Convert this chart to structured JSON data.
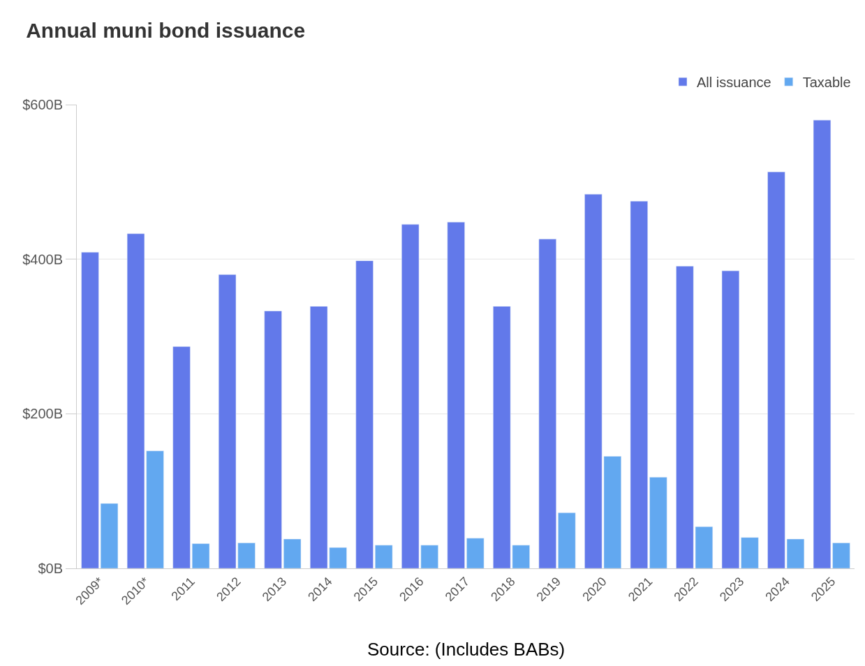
{
  "chart_data": {
    "type": "bar",
    "title": "Annual muni bond issuance",
    "categories": [
      "2009*",
      "2010*",
      "2011",
      "2012",
      "2013",
      "2014",
      "2015",
      "2016",
      "2017",
      "2018",
      "2019",
      "2020",
      "2021",
      "2022",
      "2023",
      "2024",
      "2025"
    ],
    "series": [
      {
        "name": "All issuance",
        "color": "#6279ea",
        "values": [
          409,
          433,
          287,
          380,
          333,
          339,
          398,
          445,
          448,
          339,
          426,
          484,
          475,
          391,
          385,
          513,
          580
        ]
      },
      {
        "name": "Taxable",
        "color": "#62a8f0",
        "values": [
          84,
          152,
          32,
          33,
          38,
          27,
          30,
          30,
          39,
          30,
          72,
          145,
          118,
          54,
          40,
          38,
          33
        ]
      }
    ],
    "ylim": [
      0,
      600
    ],
    "yticks": [
      {
        "value": 0,
        "label": "$0B"
      },
      {
        "value": 200,
        "label": "$200B"
      },
      {
        "value": 400,
        "label": "$400B"
      },
      {
        "value": 600,
        "label": "$600B"
      }
    ],
    "grid": "y",
    "legend": "top right",
    "annotations": [
      "Source: (Includes BABs)"
    ]
  }
}
